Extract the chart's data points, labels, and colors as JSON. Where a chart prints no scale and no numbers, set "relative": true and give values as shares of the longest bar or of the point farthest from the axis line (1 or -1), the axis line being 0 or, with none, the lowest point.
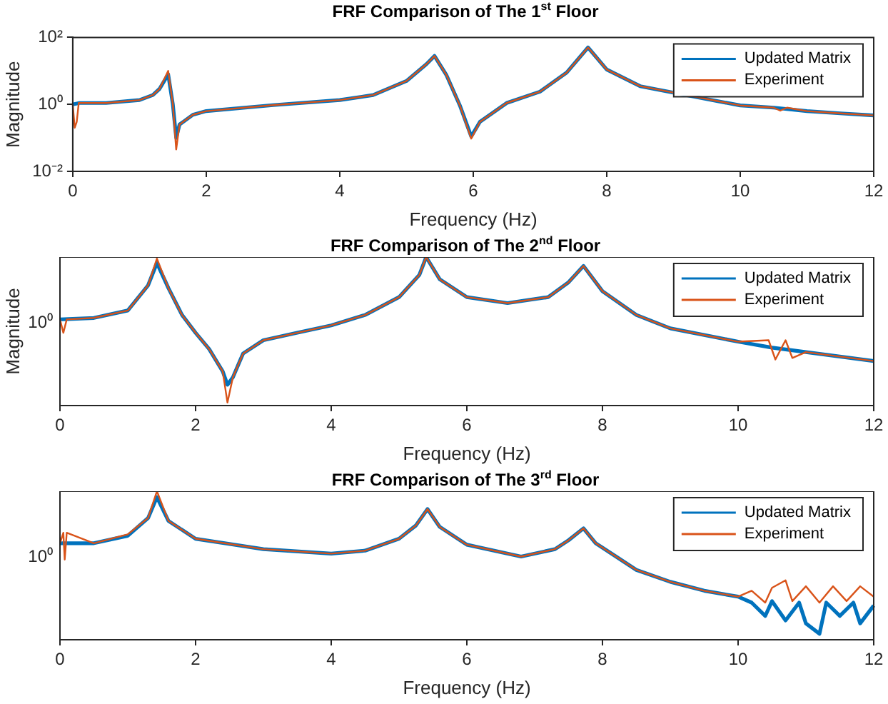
{
  "chart_data": [
    {
      "type": "line",
      "title": "FRF Comparison of The 1$^{st}$ Floor",
      "xlabel": "Frequency (Hz)",
      "ylabel": "Magnitude",
      "log": "y",
      "xlim": [
        0,
        12
      ],
      "xticks": [
        0,
        2,
        4,
        6,
        8,
        10,
        12
      ],
      "ylim": [
        0.01,
        100
      ],
      "yticks": [
        {
          "value": 0.01,
          "label": "10⁻²"
        },
        {
          "value": 1,
          "label": "10⁰"
        },
        {
          "value": 100,
          "label": "10²"
        }
      ],
      "legend": "top right",
      "series": [
        {
          "name": "Updated Matrix",
          "color": "#0072bd",
          "x": [
            0,
            0.1,
            0.5,
            1.0,
            1.2,
            1.3,
            1.43,
            1.5,
            1.55,
            1.6,
            1.8,
            2.0,
            3.0,
            4.0,
            4.5,
            5.0,
            5.3,
            5.42,
            5.6,
            5.8,
            5.97,
            6.1,
            6.5,
            7.0,
            7.4,
            7.72,
            8.0,
            8.5,
            10.0,
            10.5,
            11.0,
            11.5,
            12.0
          ],
          "values": [
            1.0,
            1.1,
            1.1,
            1.35,
            1.9,
            2.9,
            7.9,
            1.0,
            0.1,
            0.25,
            0.49,
            0.63,
            0.95,
            1.35,
            1.9,
            5.0,
            16,
            28,
            7.4,
            0.93,
            0.11,
            0.3,
            1.1,
            2.4,
            8.9,
            50,
            11,
            3.5,
            0.93,
            0.8,
            0.63,
            0.54,
            0.47
          ]
        },
        {
          "name": "Experiment",
          "color": "#d95319",
          "x": [
            0,
            0.03,
            0.06,
            0.09,
            0.1,
            0.5,
            1.0,
            1.2,
            1.3,
            1.43,
            1.5,
            1.55,
            1.6,
            1.8,
            2.0,
            3.0,
            4.0,
            4.5,
            5.0,
            5.3,
            5.42,
            5.6,
            5.8,
            5.97,
            6.1,
            6.5,
            7.0,
            7.4,
            7.72,
            8.0,
            8.5,
            10.0,
            10.5,
            10.6,
            10.7,
            11.0,
            11.5,
            12.0
          ],
          "values": [
            1.0,
            0.2,
            0.3,
            1.1,
            1.1,
            1.1,
            1.35,
            1.9,
            2.9,
            10,
            1.0,
            0.045,
            0.25,
            0.49,
            0.63,
            0.95,
            1.35,
            1.9,
            5.0,
            16,
            28,
            7.4,
            0.93,
            0.095,
            0.3,
            1.1,
            2.4,
            8.9,
            50,
            11,
            3.5,
            0.93,
            0.8,
            0.65,
            0.8,
            0.63,
            0.54,
            0.47
          ]
        }
      ]
    },
    {
      "type": "line",
      "title": "FRF Comparison of The 2$^{nd}$ Floor",
      "xlabel": "Frequency (Hz)",
      "ylabel": "Magnitude",
      "relative": true,
      "xlim": [
        0,
        12
      ],
      "xticks": [
        0,
        2,
        4,
        6,
        8,
        10,
        12
      ],
      "annotations": [
        "10⁰"
      ],
      "legend": "top right",
      "series": [
        {
          "name": "Updated Matrix",
          "color": "#0072bd",
          "x": [
            0,
            0.5,
            1.0,
            1.3,
            1.43,
            1.6,
            1.8,
            2.0,
            2.2,
            2.4,
            2.47,
            2.55,
            2.7,
            3.0,
            3.5,
            4.0,
            4.5,
            5.0,
            5.3,
            5.4,
            5.6,
            6.0,
            6.6,
            7.2,
            7.5,
            7.72,
            8.0,
            8.5,
            9.0,
            10.0,
            10.5,
            11.0,
            11.5,
            12.0
          ],
          "values": [
            0.58,
            0.59,
            0.64,
            0.81,
            0.96,
            0.79,
            0.61,
            0.49,
            0.38,
            0.23,
            0.14,
            0.19,
            0.35,
            0.44,
            0.49,
            0.54,
            0.61,
            0.73,
            0.88,
            1.0,
            0.85,
            0.73,
            0.69,
            0.73,
            0.83,
            0.94,
            0.77,
            0.61,
            0.52,
            0.43,
            0.39,
            0.36,
            0.33,
            0.3
          ]
        },
        {
          "name": "Experiment",
          "color": "#d95319",
          "x": [
            0,
            0.05,
            0.1,
            0.5,
            1.0,
            1.3,
            1.43,
            1.6,
            1.8,
            2.0,
            2.2,
            2.4,
            2.47,
            2.55,
            2.7,
            3.0,
            3.5,
            4.0,
            4.5,
            5.0,
            5.3,
            5.4,
            5.6,
            6.0,
            6.6,
            7.2,
            7.5,
            7.72,
            8.0,
            8.5,
            9.0,
            10.0,
            10.45,
            10.55,
            10.7,
            10.8,
            11.0,
            11.5,
            12.0
          ],
          "values": [
            0.58,
            0.49,
            0.58,
            0.59,
            0.64,
            0.81,
            0.99,
            0.79,
            0.61,
            0.49,
            0.38,
            0.23,
            0.02,
            0.19,
            0.35,
            0.44,
            0.49,
            0.54,
            0.61,
            0.73,
            0.88,
            1.0,
            0.85,
            0.73,
            0.69,
            0.73,
            0.83,
            0.94,
            0.77,
            0.61,
            0.52,
            0.43,
            0.44,
            0.31,
            0.44,
            0.32,
            0.36,
            0.33,
            0.3
          ]
        }
      ]
    },
    {
      "type": "line",
      "title": "FRF Comparison of The 3$^{rd}$ Floor",
      "xlabel": "Frequency (Hz)",
      "relative": true,
      "xlim": [
        0,
        12
      ],
      "xticks": [
        0,
        2,
        4,
        6,
        8,
        10,
        12
      ],
      "annotations": [
        "10⁰"
      ],
      "legend": "top right",
      "series": [
        {
          "name": "Updated Matrix",
          "color": "#0072bd",
          "x": [
            0,
            0.5,
            1.0,
            1.3,
            1.43,
            1.6,
            2.0,
            3.0,
            4.0,
            4.5,
            5.0,
            5.25,
            5.42,
            5.6,
            6.0,
            6.8,
            7.3,
            7.5,
            7.72,
            7.9,
            8.2,
            8.5,
            9.0,
            9.5,
            10.0,
            10.2,
            10.4,
            10.5,
            10.7,
            10.9,
            11.0,
            11.2,
            11.3,
            11.5,
            11.7,
            11.8,
            12.0
          ],
          "values": [
            0.65,
            0.65,
            0.7,
            0.82,
            0.96,
            0.8,
            0.68,
            0.61,
            0.58,
            0.6,
            0.68,
            0.77,
            0.88,
            0.76,
            0.64,
            0.56,
            0.61,
            0.67,
            0.75,
            0.65,
            0.56,
            0.47,
            0.39,
            0.33,
            0.29,
            0.25,
            0.16,
            0.26,
            0.13,
            0.25,
            0.11,
            0.04,
            0.25,
            0.16,
            0.25,
            0.11,
            0.23
          ]
        },
        {
          "name": "Experiment",
          "color": "#d95319",
          "x": [
            0,
            0.05,
            0.07,
            0.1,
            0.5,
            1.0,
            1.3,
            1.43,
            1.6,
            2.0,
            3.0,
            4.0,
            4.5,
            5.0,
            5.25,
            5.42,
            5.6,
            6.0,
            6.8,
            7.3,
            7.5,
            7.72,
            7.9,
            8.2,
            8.5,
            9.0,
            9.5,
            10.0,
            10.2,
            10.4,
            10.5,
            10.7,
            10.8,
            11.0,
            11.2,
            11.4,
            11.6,
            11.8,
            12.0
          ],
          "values": [
            0.65,
            0.72,
            0.54,
            0.72,
            0.65,
            0.71,
            0.82,
            1.0,
            0.8,
            0.68,
            0.61,
            0.58,
            0.6,
            0.68,
            0.77,
            0.88,
            0.76,
            0.64,
            0.56,
            0.61,
            0.67,
            0.75,
            0.65,
            0.56,
            0.47,
            0.39,
            0.33,
            0.29,
            0.33,
            0.25,
            0.35,
            0.4,
            0.26,
            0.36,
            0.25,
            0.36,
            0.26,
            0.36,
            0.29
          ]
        }
      ]
    }
  ]
}
